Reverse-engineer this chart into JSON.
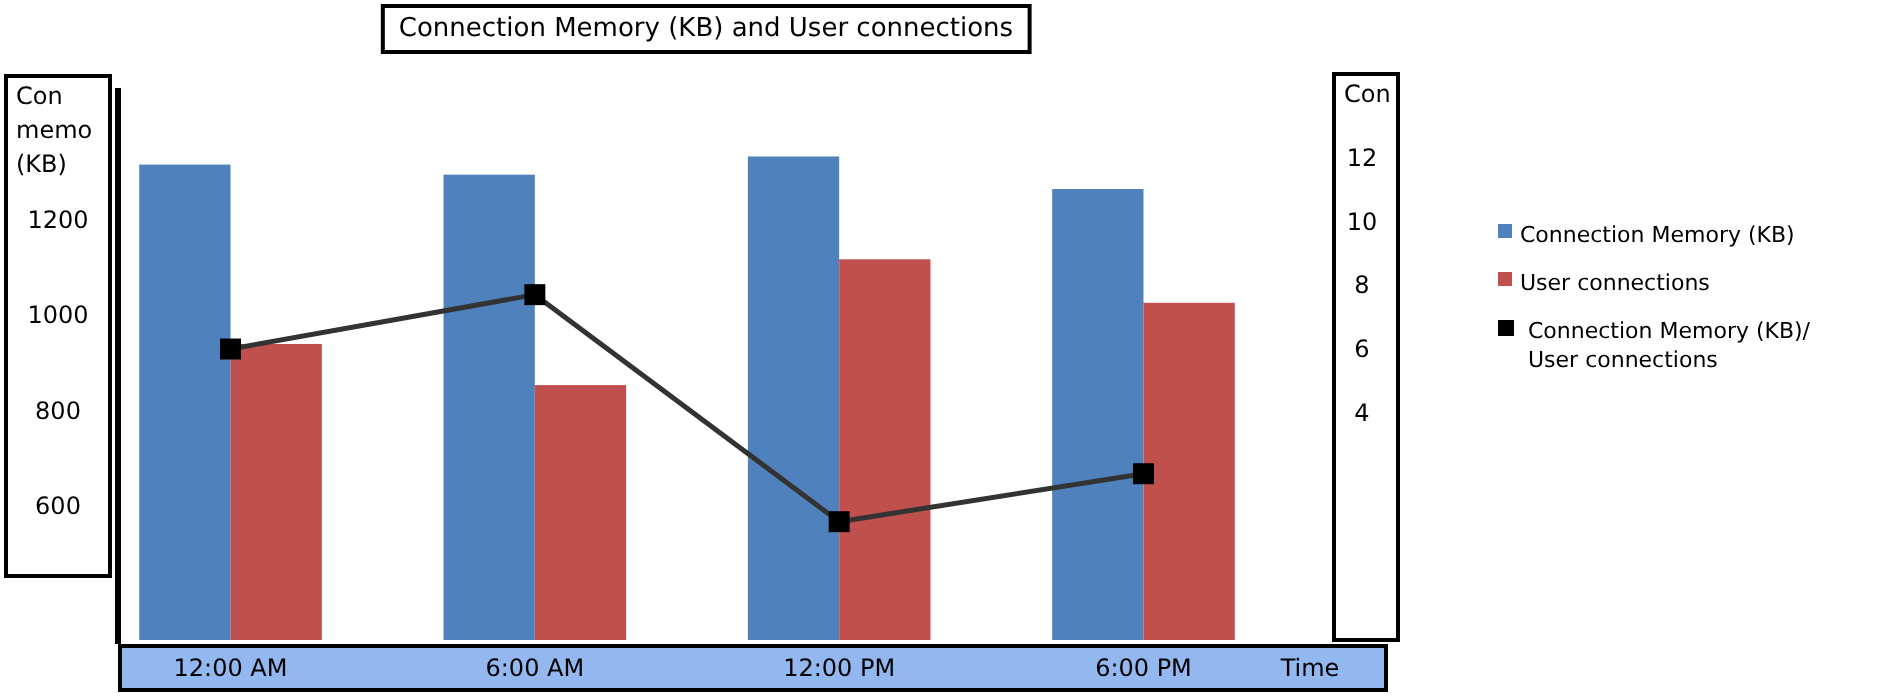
{
  "chart_data": {
    "type": "bar",
    "title": "Connection Memory (KB) and User connections",
    "xlabel": "Time",
    "ylabel": "Con memo (KB)",
    "y2label": "Con",
    "categories": [
      "12:00 AM",
      "6:00 AM",
      "12:00 PM",
      "6:00 PM"
    ],
    "series": [
      {
        "name": "Connection Memory (KB)",
        "type": "bar",
        "color": "#4f81bd",
        "values": [
          1314,
          1293,
          1331,
          1263
        ]
      },
      {
        "name": "User connections",
        "type": "bar",
        "color": "#c0504d",
        "values": [
          939,
          853,
          1116,
          1025
        ]
      },
      {
        "name": "Connection Memory (KB)/ User connections",
        "type": "line",
        "axis": "y2",
        "color": "#333333",
        "marker": "square",
        "values": [
          6.0,
          7.7,
          0.6,
          2.1
        ]
      }
    ],
    "ylim": [
      320,
      1470
    ],
    "yticks": [
      600,
      800,
      1000,
      1200
    ],
    "y2lim": [
      -3.1,
      14.1
    ],
    "y2ticks": [
      4,
      6,
      8,
      10,
      12
    ],
    "grid": false,
    "legend": "right"
  }
}
